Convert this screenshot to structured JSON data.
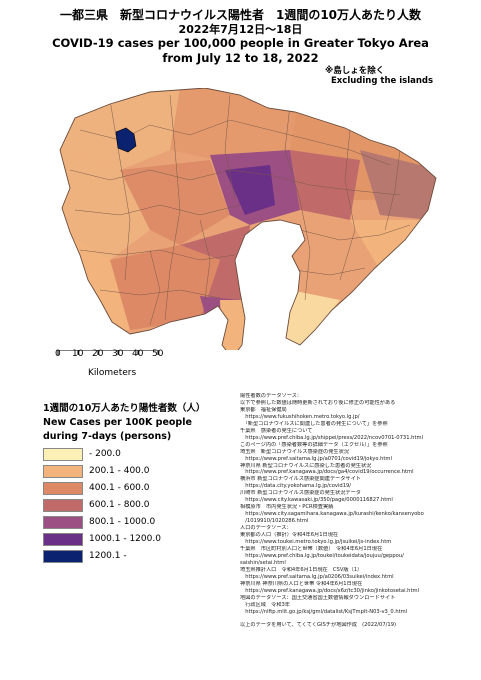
{
  "title_jp": "一都三県　新型コロナウイルス陽性者　1週間の10万人あたり人数",
  "period_jp": "2022年7月12日～18日",
  "title_en": "COVID-19 cases per 100,000 people in Greater Tokyo Area",
  "period_en": "from July 12 to 18, 2022",
  "note_jp": "※島しょを除く",
  "note_en": "Excluding the islands",
  "scale": {
    "ticks": [
      "0",
      "10",
      "20",
      "30",
      "40",
      "50"
    ],
    "unit": "Kilometers"
  },
  "legend": {
    "title_jp": "1週間の10万人あたり陽性者数（人）",
    "title_en_1": "New Cases per 100K people",
    "title_en_2": "during 7-days (persons)",
    "classes": [
      {
        "label": "- 200.0",
        "color": "#fdf0b6"
      },
      {
        "label": "200.1 - 400.0",
        "color": "#f2b47c"
      },
      {
        "label": "400.1 - 600.0",
        "color": "#de8966"
      },
      {
        "label": "600.1 - 800.0",
        "color": "#c06b6a"
      },
      {
        "label": "800.1 - 1000.0",
        "color": "#9b4f83"
      },
      {
        "label": "1000.1 - 1200.0",
        "color": "#6a2f86"
      },
      {
        "label": "1200.1 -",
        "color": "#0b2270"
      }
    ]
  },
  "colors": {
    "sea": "#ffffff",
    "land_default": "#e8a276",
    "boundary": "#7a5a4a"
  },
  "sources": [
    "陽性者数のデータソース：",
    "以下で参照した数値は随時更新されており後に修正の可能性がある",
    "東京都　福祉保健局",
    "　https://www.fukushihoken.metro.tokyo.lg.jp/",
    "　「新型コロナウイルスに関連した患者の発生について」を参照",
    "千葉県　感染者の発生について",
    "　https://www.pref.chiba.lg.jp/shippei/press/2022/ncov0701-0731.html",
    "このページ内の「感染者数等の詳細データ（エクセル）」を参照",
    "埼玉県　新型コロナウイルス感染症の発生状況",
    "　https://www.pref.saitama.lg.jp/a0701/covid19/jokyo.html",
    "神奈川県 新型コロナウイルスに感染した患者の発生状況",
    "　https://www.pref.kanagawa.jp/docs/ga4/covid19/occurrence.html",
    "横浜市 新型コロナウイルス感染症関連データサイト",
    "　https://data.city.yokohama.lg.jp/covid19/",
    "川崎市 新型コロナウイルス感染症の発生状況データ",
    "　https://www.city.kawasaki.jp/350/page/0000116827.html",
    "相模原市　市内発生状況・PCR検査実績",
    "　https://www.city.sagamihara.kanagawa.jp/kurashi/kenko/kansenyobo",
    "　/1019910/1020286.html",
    "人口のデータソース：",
    "東京都の人口（推計）令和4年6月1日現在",
    "　https://www.toukei.metro.tokyo.lg.jp/jsuikei/js-index.htm",
    "千葉県　市区町村別人口と世帯（数値）　令和4年6月1日現在",
    "　https://www.pref.chiba.lg.jp/toukei/toukeidata/joujuu/geppou/",
    "saishin/setai.html",
    "埼玉県推計人口　令和4年6月1日現在　CSV版（1）",
    "　https://www.pref.saitama.lg.jp/a0206/03suikei/index.html",
    "神奈川県 神奈川県の人口と世帯 令和4年6月1日現在",
    "　https://www.pref.kanagawa.jp/docs/x6z/tc30/jinko/jinkotosetai.html",
    "地図のデータソース：国土交通省国土数値情報ダウンロードサイト",
    "　行政区域　令和3年",
    "　https://nlftp.mlit.go.jp/ksj/gml/datalist/KsjTmplt-N03-v3_0.html",
    "",
    "以上のデータを用いて、てくてくGISチが地図作成　(2022/07/19)"
  ]
}
